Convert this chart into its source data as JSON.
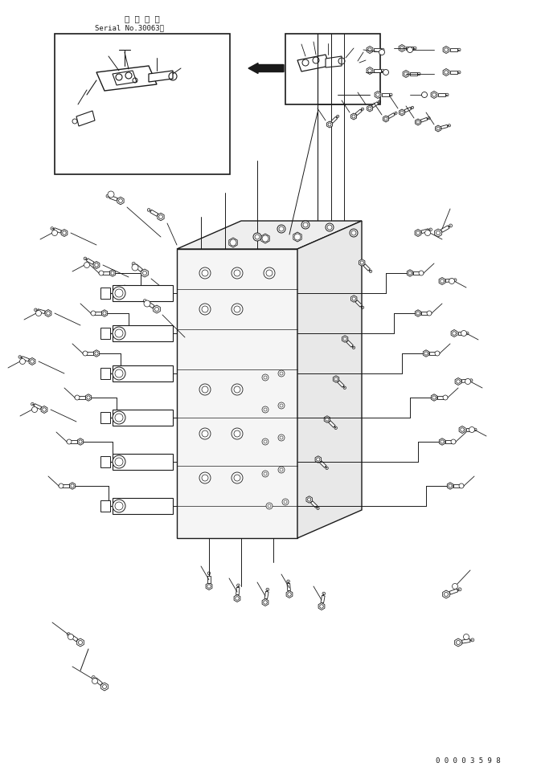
{
  "title_line1": "適 用 号 機",
  "title_line2": "Serial No.30063～",
  "part_number": "0 0 0 0 3 5 9 8",
  "bg_color": "#ffffff",
  "line_color": "#1a1a1a",
  "fig_width": 6.73,
  "fig_height": 9.6,
  "dpi": 100
}
